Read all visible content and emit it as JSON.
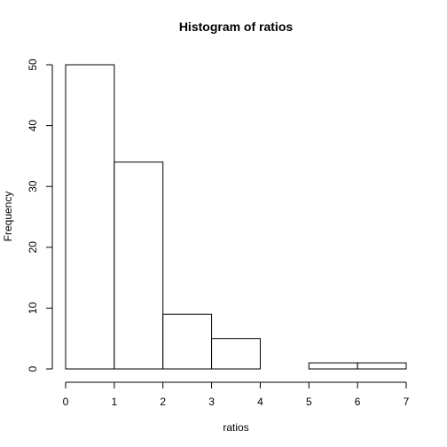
{
  "chart_data": {
    "type": "bar",
    "title": "Histogram of ratios",
    "xlabel": "ratios",
    "ylabel": "Frequency",
    "bins": [
      {
        "start": 0,
        "end": 1,
        "count": 50
      },
      {
        "start": 1,
        "end": 2,
        "count": 34
      },
      {
        "start": 2,
        "end": 3,
        "count": 9
      },
      {
        "start": 3,
        "end": 4,
        "count": 5
      },
      {
        "start": 4,
        "end": 5,
        "count": 0
      },
      {
        "start": 5,
        "end": 6,
        "count": 1
      },
      {
        "start": 6,
        "end": 7,
        "count": 1
      }
    ],
    "xlim": [
      0,
      7
    ],
    "ylim": [
      0,
      50
    ],
    "xticks": [
      "0",
      "1",
      "2",
      "3",
      "4",
      "5",
      "6",
      "7"
    ],
    "yticks": [
      "0",
      "10",
      "20",
      "30",
      "40",
      "50"
    ],
    "grid": false,
    "bar_fill": "#ffffff",
    "bar_stroke": "#000000"
  }
}
